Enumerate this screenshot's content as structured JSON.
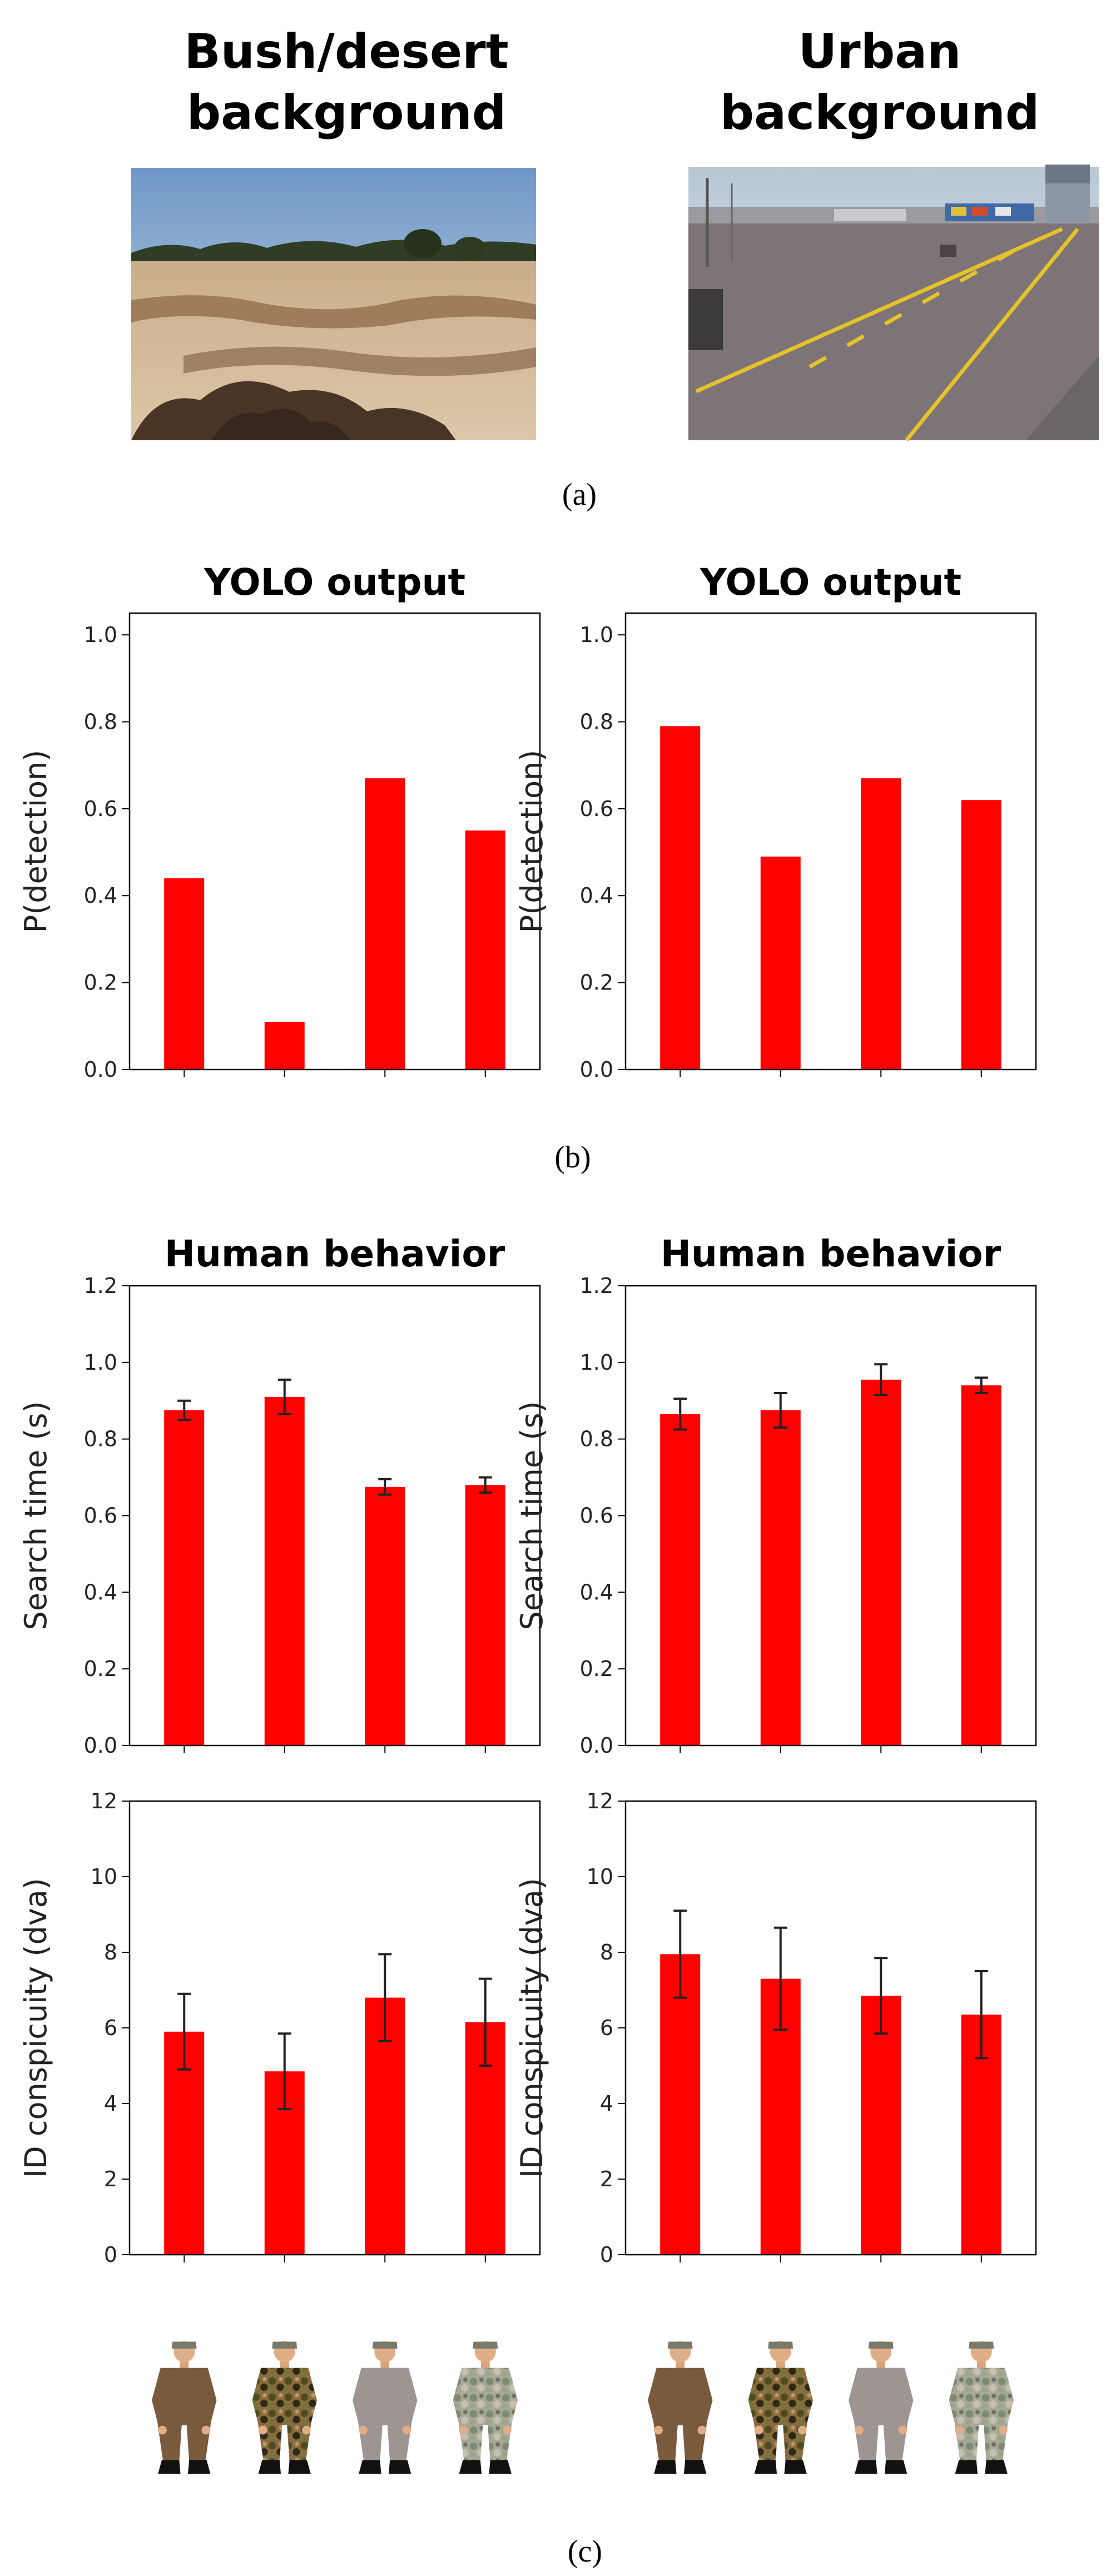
{
  "panel_a": {
    "caption": "(a)",
    "scenes": [
      {
        "title_lines": [
          "Bush/desert",
          "background"
        ],
        "image": "bush-desert-scene"
      },
      {
        "title_lines": [
          "Urban",
          "background"
        ],
        "image": "urban-pavement-scene"
      }
    ]
  },
  "panel_b": {
    "caption": "(b)"
  },
  "panel_c": {
    "caption": "(c)"
  },
  "soldier_uniforms": [
    "brown-uniform",
    "woodland-camouflage",
    "grey-uniform",
    "grey-green-camouflage"
  ],
  "colors": {
    "bar": "#ff0000",
    "error_bar": "#222222",
    "axis": "#000000"
  },
  "chart_data": [
    {
      "id": "yolo-bush",
      "type": "bar",
      "title": "YOLO output",
      "ylabel": "P(detection)",
      "xlabel": "",
      "ylim": [
        0,
        1.05
      ],
      "yticks": [
        "0.0",
        "0.2",
        "0.4",
        "0.6",
        "0.8",
        "1.0"
      ],
      "categories": [
        "brown-uniform",
        "woodland-camouflage",
        "grey-uniform",
        "grey-green-camouflage"
      ],
      "values": [
        0.44,
        0.11,
        0.67,
        0.55
      ]
    },
    {
      "id": "yolo-urban",
      "type": "bar",
      "title": "YOLO output",
      "ylabel": "P(detection)",
      "xlabel": "",
      "ylim": [
        0,
        1.05
      ],
      "yticks": [
        "0.0",
        "0.2",
        "0.4",
        "0.6",
        "0.8",
        "1.0"
      ],
      "categories": [
        "brown-uniform",
        "woodland-camouflage",
        "grey-uniform",
        "grey-green-camouflage"
      ],
      "values": [
        0.79,
        0.49,
        0.67,
        0.62
      ]
    },
    {
      "id": "search-bush",
      "type": "bar",
      "title": "Human behavior",
      "ylabel": "Search time (s)",
      "xlabel": "",
      "ylim": [
        0,
        1.2
      ],
      "yticks": [
        "0.0",
        "0.2",
        "0.4",
        "0.6",
        "0.8",
        "1.0",
        "1.2"
      ],
      "categories": [
        "brown-uniform",
        "woodland-camouflage",
        "grey-uniform",
        "grey-green-camouflage"
      ],
      "values": [
        0.875,
        0.91,
        0.675,
        0.68
      ],
      "errors": [
        0.025,
        0.045,
        0.02,
        0.02
      ]
    },
    {
      "id": "search-urban",
      "type": "bar",
      "title": "Human behavior",
      "ylabel": "Search time (s)",
      "xlabel": "",
      "ylim": [
        0,
        1.2
      ],
      "yticks": [
        "0.0",
        "0.2",
        "0.4",
        "0.6",
        "0.8",
        "1.0",
        "1.2"
      ],
      "categories": [
        "brown-uniform",
        "woodland-camouflage",
        "grey-uniform",
        "grey-green-camouflage"
      ],
      "values": [
        0.865,
        0.875,
        0.955,
        0.94
      ],
      "errors": [
        0.04,
        0.045,
        0.04,
        0.02
      ]
    },
    {
      "id": "id-bush",
      "type": "bar",
      "title": "",
      "ylabel": "ID conspicuity (dva)",
      "xlabel": "",
      "ylim": [
        0,
        12
      ],
      "yticks": [
        "0",
        "2",
        "4",
        "6",
        "8",
        "10",
        "12"
      ],
      "categories": [
        "brown-uniform",
        "woodland-camouflage",
        "grey-uniform",
        "grey-green-camouflage"
      ],
      "values": [
        5.9,
        4.85,
        6.8,
        6.15
      ],
      "errors": [
        1.0,
        1.0,
        1.15,
        1.15
      ]
    },
    {
      "id": "id-urban",
      "type": "bar",
      "title": "",
      "ylabel": "ID conspicuity (dva)",
      "xlabel": "",
      "ylim": [
        0,
        12
      ],
      "yticks": [
        "0",
        "2",
        "4",
        "6",
        "8",
        "10",
        "12"
      ],
      "categories": [
        "brown-uniform",
        "woodland-camouflage",
        "grey-uniform",
        "grey-green-camouflage"
      ],
      "values": [
        7.95,
        7.3,
        6.85,
        6.35
      ],
      "errors": [
        1.15,
        1.35,
        1.0,
        1.15
      ]
    }
  ]
}
